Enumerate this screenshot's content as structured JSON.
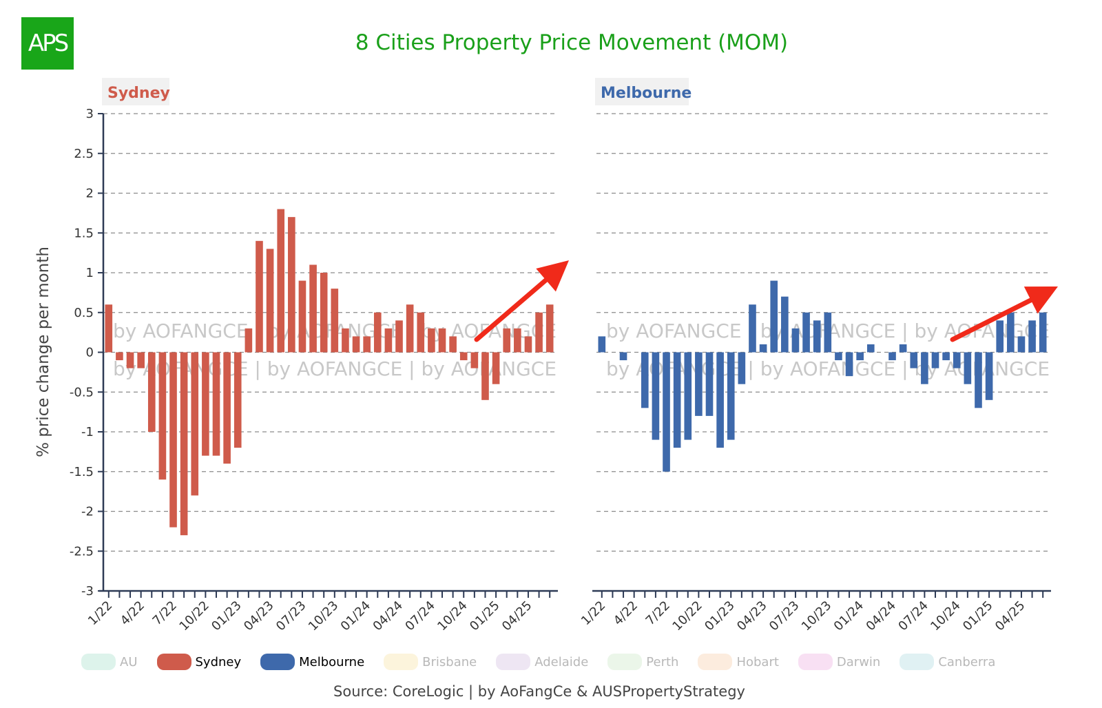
{
  "logo": {
    "text": "APS",
    "color": "#19a619"
  },
  "title": "8 Cities Property Price Movement (MOM)",
  "source": "Source: CoreLogic | by AoFangCe & AUSPropertyStrategy",
  "watermark": "by AOFANGCE | by AOFANGCE | by AOFANGCE",
  "legend": [
    {
      "label": "AU",
      "color": "#9fdcc6",
      "active": false
    },
    {
      "label": "Sydney",
      "color": "#cf5b4b",
      "active": true
    },
    {
      "label": "Melbourne",
      "color": "#3e69ab",
      "active": true
    },
    {
      "label": "Brisbane",
      "color": "#f7df9b",
      "active": false
    },
    {
      "label": "Adelaide",
      "color": "#cfb6dc",
      "active": false
    },
    {
      "label": "Perth",
      "color": "#c6e6c0",
      "active": false
    },
    {
      "label": "Hobart",
      "color": "#f5c9a0",
      "active": false
    },
    {
      "label": "Darwin",
      "color": "#eca5dc",
      "active": false
    },
    {
      "label": "Canberra",
      "color": "#a6d6dc",
      "active": false
    }
  ],
  "chart_data": [
    {
      "type": "bar",
      "title": "Sydney",
      "ylabel": "% price change per month",
      "ylim": [
        -3,
        3
      ],
      "yticks": [
        "3",
        "2.5",
        "2",
        "1.5",
        "1",
        "0.5",
        "0",
        "-0.5",
        "-1",
        "-1.5",
        "-2",
        "-2.5",
        "-3"
      ],
      "grid": true,
      "color": "#cf5b4b",
      "xticklabels": [
        "1/22",
        "4/22",
        "7/22",
        "10/22",
        "01/23",
        "04/23",
        "07/23",
        "10/23",
        "01/24",
        "04/24",
        "07/24",
        "10/24",
        "01/25",
        "04/25"
      ],
      "categories": [
        "1/22",
        "2/22",
        "3/22",
        "4/22",
        "5/22",
        "6/22",
        "7/22",
        "8/22",
        "9/22",
        "10/22",
        "11/22",
        "12/22",
        "01/23",
        "02/23",
        "03/23",
        "04/23",
        "05/23",
        "06/23",
        "07/23",
        "08/23",
        "09/23",
        "10/23",
        "11/23",
        "12/23",
        "01/24",
        "02/24",
        "03/24",
        "04/24",
        "05/24",
        "06/24",
        "07/24",
        "08/24",
        "09/24",
        "10/24",
        "11/24",
        "12/24",
        "01/25",
        "02/25",
        "03/25",
        "04/25",
        "05/25",
        "06/25"
      ],
      "values": [
        0.6,
        -0.1,
        -0.2,
        -0.2,
        -1.0,
        -1.6,
        -2.2,
        -2.3,
        -1.8,
        -1.3,
        -1.3,
        -1.4,
        -1.2,
        0.3,
        1.4,
        1.3,
        1.8,
        1.7,
        0.9,
        1.1,
        1.0,
        0.8,
        0.3,
        0.2,
        0.2,
        0.5,
        0.3,
        0.4,
        0.6,
        0.5,
        0.3,
        0.3,
        0.2,
        -0.1,
        -0.2,
        -0.6,
        -0.4,
        0.3,
        0.3,
        0.2,
        0.5,
        0.6
      ],
      "annotation": "upward-trend-arrow"
    },
    {
      "type": "bar",
      "title": "Melbourne",
      "ylim": [
        -3,
        3
      ],
      "grid": true,
      "color": "#3e69ab",
      "xticklabels": [
        "1/22",
        "4/22",
        "7/22",
        "10/22",
        "01/23",
        "04/23",
        "07/23",
        "10/23",
        "01/24",
        "04/24",
        "07/24",
        "10/24",
        "01/25",
        "04/25"
      ],
      "categories": [
        "1/22",
        "2/22",
        "3/22",
        "4/22",
        "5/22",
        "6/22",
        "7/22",
        "8/22",
        "9/22",
        "10/22",
        "11/22",
        "12/22",
        "01/23",
        "02/23",
        "03/23",
        "04/23",
        "05/23",
        "06/23",
        "07/23",
        "08/23",
        "09/23",
        "10/23",
        "11/23",
        "12/23",
        "01/24",
        "02/24",
        "03/24",
        "04/24",
        "05/24",
        "06/24",
        "07/24",
        "08/24",
        "09/24",
        "10/24",
        "11/24",
        "12/24",
        "01/25",
        "02/25",
        "03/25",
        "04/25",
        "05/25",
        "06/25"
      ],
      "values": [
        0.2,
        0.0,
        -0.1,
        0.0,
        -0.7,
        -1.1,
        -1.5,
        -1.2,
        -1.1,
        -0.8,
        -0.8,
        -1.2,
        -1.1,
        -0.4,
        0.6,
        0.1,
        0.9,
        0.7,
        0.3,
        0.5,
        0.4,
        0.5,
        -0.1,
        -0.3,
        -0.1,
        0.1,
        0.0,
        -0.1,
        0.1,
        -0.2,
        -0.4,
        -0.2,
        -0.1,
        -0.2,
        -0.4,
        -0.7,
        -0.6,
        0.4,
        0.5,
        0.2,
        0.4,
        0.5
      ],
      "annotation": "upward-trend-arrow"
    }
  ]
}
